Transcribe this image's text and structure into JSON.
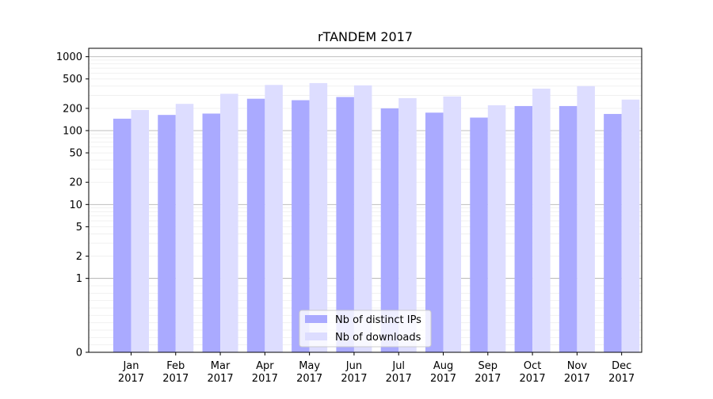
{
  "chart_data": {
    "type": "bar",
    "title": "rTANDEM 2017",
    "xlabel": "",
    "ylabel": "",
    "y_scale": "symlog",
    "ylim": [
      0,
      1300
    ],
    "y_ticks": [
      0,
      1,
      2,
      5,
      10,
      20,
      50,
      100,
      200,
      500,
      1000
    ],
    "y_tick_labels": [
      "0",
      "1",
      "2",
      "5",
      "10",
      "20",
      "50",
      "100",
      "200",
      "500",
      "1000"
    ],
    "grid": true,
    "categories": [
      [
        "Jan",
        "2017"
      ],
      [
        "Feb",
        "2017"
      ],
      [
        "Mar",
        "2017"
      ],
      [
        "Apr",
        "2017"
      ],
      [
        "May",
        "2017"
      ],
      [
        "Jun",
        "2017"
      ],
      [
        "Jul",
        "2017"
      ],
      [
        "Aug",
        "2017"
      ],
      [
        "Sep",
        "2017"
      ],
      [
        "Oct",
        "2017"
      ],
      [
        "Nov",
        "2017"
      ],
      [
        "Dec",
        "2017"
      ]
    ],
    "series": [
      {
        "name": "Nb of distinct IPs",
        "color": "#aaaaff",
        "values": [
          145,
          163,
          170,
          270,
          258,
          285,
          200,
          175,
          150,
          215,
          215,
          168
        ]
      },
      {
        "name": "Nb of downloads",
        "color": "#ddddff",
        "values": [
          190,
          230,
          315,
          415,
          440,
          410,
          275,
          290,
          220,
          370,
          400,
          263
        ]
      }
    ],
    "legend_position": "bottom-center"
  }
}
